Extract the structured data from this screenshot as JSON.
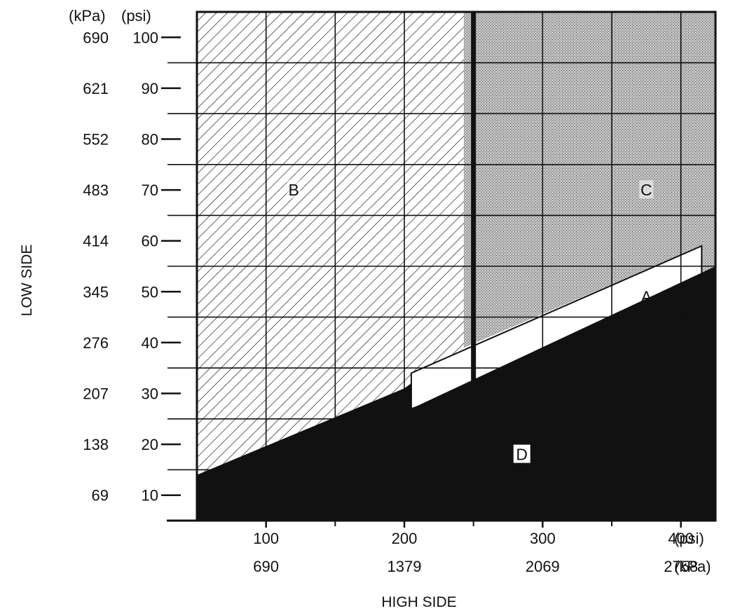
{
  "chart_data": {
    "type": "area",
    "axes": {
      "y_title": "LOW SIDE",
      "x_title": "HIGH SIDE",
      "y_unit_kpa": "(kPa)",
      "y_unit_psi": "(psi)",
      "x_unit_psi": "(psi)",
      "x_unit_kpa": "(kPa)",
      "x_range_psi": [
        50,
        425
      ],
      "y_range_psi": [
        5,
        105
      ],
      "y_ticks": [
        {
          "psi": 100,
          "psi_label": "100",
          "kpa_label": "690"
        },
        {
          "psi": 90,
          "psi_label": "90",
          "kpa_label": "621"
        },
        {
          "psi": 80,
          "psi_label": "80",
          "kpa_label": "552"
        },
        {
          "psi": 70,
          "psi_label": "70",
          "kpa_label": "483"
        },
        {
          "psi": 60,
          "psi_label": "60",
          "kpa_label": "414"
        },
        {
          "psi": 50,
          "psi_label": "50",
          "kpa_label": "345"
        },
        {
          "psi": 40,
          "psi_label": "40",
          "kpa_label": "276"
        },
        {
          "psi": 30,
          "psi_label": "30",
          "kpa_label": "207"
        },
        {
          "psi": 20,
          "psi_label": "20",
          "kpa_label": "138"
        },
        {
          "psi": 10,
          "psi_label": "10",
          "kpa_label": "69"
        }
      ],
      "x_ticks": [
        {
          "psi": 100,
          "psi_label": "100",
          "kpa_label": "690"
        },
        {
          "psi": 200,
          "psi_label": "200",
          "kpa_label": "1379"
        },
        {
          "psi": 300,
          "psi_label": "300",
          "kpa_label": "2069"
        },
        {
          "psi": 400,
          "psi_label": "400",
          "kpa_label": "2758"
        }
      ],
      "x_minor_ticks_psi": [
        150,
        250,
        350
      ],
      "grid_psi": {
        "vertical": [
          100,
          150,
          200,
          250,
          300,
          350,
          400
        ],
        "horizontal": [
          15,
          25,
          35,
          45,
          55,
          65,
          75,
          85,
          95
        ]
      }
    },
    "regions": [
      {
        "label": "A",
        "fill": "white",
        "points_psi": [
          [
            205,
            27
          ],
          [
            205,
            34
          ],
          [
            415,
            59
          ],
          [
            415,
            53
          ],
          [
            395,
            44
          ]
        ]
      },
      {
        "label": "B",
        "fill": "hatched",
        "points_psi": [
          [
            50,
            14
          ],
          [
            50,
            105
          ],
          [
            243,
            105
          ],
          [
            243,
            34
          ],
          [
            200,
            31
          ]
        ]
      },
      {
        "label": "C",
        "fill": "stippled",
        "points_psi": [
          [
            243,
            105
          ],
          [
            425,
            105
          ],
          [
            425,
            55
          ],
          [
            415,
            53
          ],
          [
            415,
            59
          ],
          [
            243,
            39
          ]
        ]
      },
      {
        "label": "D",
        "fill": "black",
        "points_psi": [
          [
            50,
            5
          ],
          [
            50,
            14
          ],
          [
            200,
            31
          ],
          [
            205,
            32
          ],
          [
            205,
            27
          ],
          [
            425,
            55
          ],
          [
            425,
            5
          ]
        ]
      }
    ],
    "label_positions_psi": {
      "A": [
        375,
        49
      ],
      "B": [
        120,
        70
      ],
      "C": [
        375,
        70
      ],
      "D": [
        285,
        18
      ]
    },
    "divider_psi": 250,
    "colors": {
      "ink": "#111111",
      "stipple": "#b3b3b3",
      "hatch": "#222222",
      "background": "#ffffff"
    }
  }
}
